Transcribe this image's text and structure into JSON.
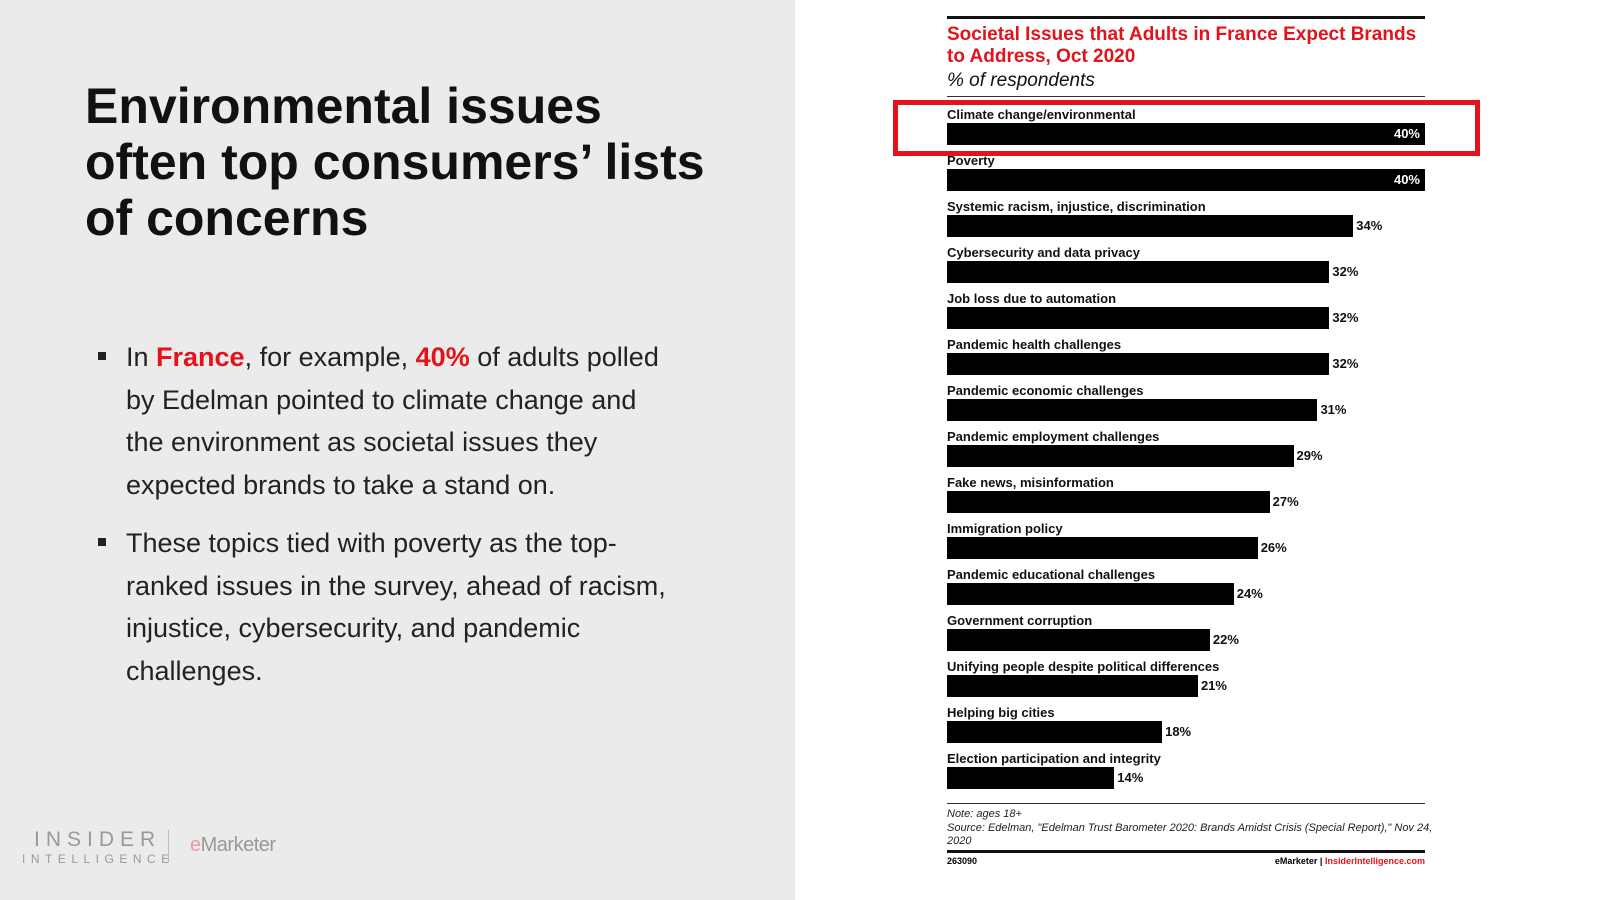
{
  "slide": {
    "headline": "Environmental issues often top consumers’ lists of concerns",
    "bullets": [
      {
        "pre": "In ",
        "h1": "France",
        "mid": ", for example, ",
        "h2": "40%",
        "post": " of adults polled by Edelman pointed to climate change and the environment as societal issues they expected brands to take a stand on."
      },
      {
        "text": "These topics tied with poverty as the top-ranked issues in the survey, ahead of racism, injustice, cybersecurity, and pandemic challenges."
      }
    ],
    "logo_line1": "INSIDER",
    "logo_line2": "INTELLIGENCE",
    "emarketer_logo": "eMarketer"
  },
  "chart_data": {
    "type": "bar",
    "orientation": "horizontal",
    "title": "Societal Issues that Adults in France Expect Brands to Address, Oct 2020",
    "subtitle": "% of respondents",
    "categories": [
      "Climate change/environmental",
      "Poverty",
      "Systemic racism, injustice, discrimination",
      "Cybersecurity and data privacy",
      "Job loss due to automation",
      "Pandemic health challenges",
      "Pandemic economic challenges",
      "Pandemic employment challenges",
      "Fake news, misinformation",
      "Immigration policy",
      "Pandemic educational challenges",
      "Government corruption",
      "Unifying people despite political differences",
      "Helping big cities",
      "Election participation and integrity"
    ],
    "values": [
      40,
      40,
      34,
      32,
      32,
      32,
      31,
      29,
      27,
      26,
      24,
      22,
      21,
      18,
      14
    ],
    "value_suffix": "%",
    "highlighted": "Climate change/environmental",
    "highlight_color": "#e3121b",
    "bar_color": "#000000",
    "note": "Note: ages 18+",
    "source": "Source: Edelman, \"Edelman Trust Barometer 2020: Brands Amidst Crisis (Special Report),\" Nov 24, 2020",
    "chart_id": "263090",
    "credit_a": "eMarketer",
    "credit_sep": "|",
    "credit_b": "InsiderIntelligence.com"
  }
}
